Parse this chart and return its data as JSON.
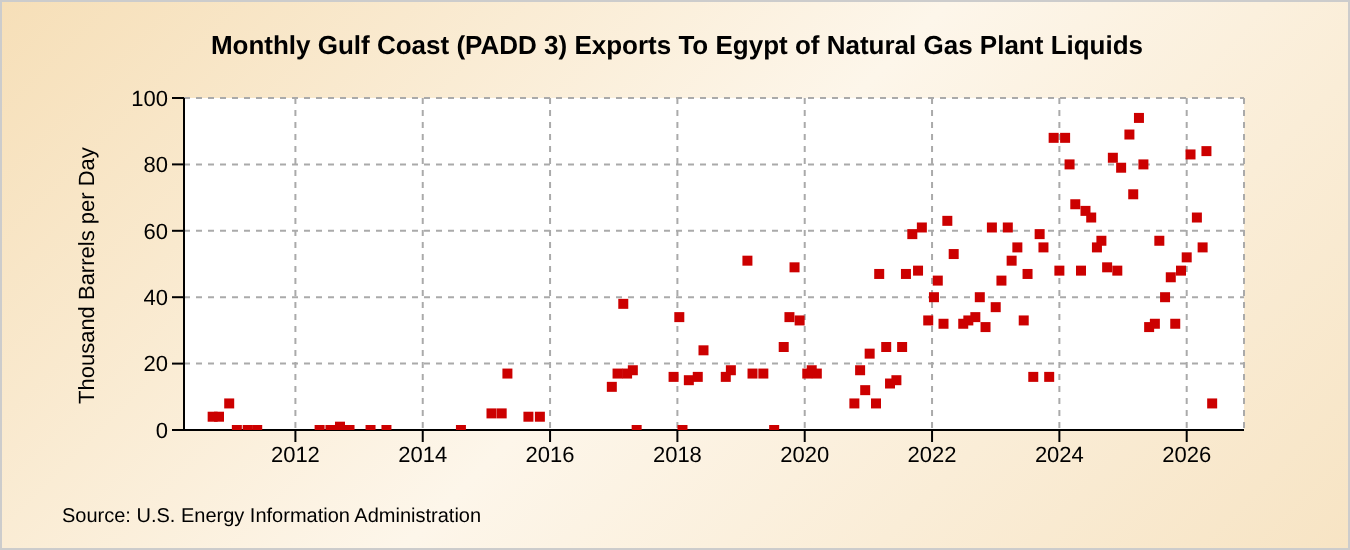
{
  "chart_data": {
    "type": "scatter",
    "title": "Monthly Gulf Coast (PADD 3) Exports To Egypt of Natural Gas Plant Liquids",
    "ylabel": "Thousand Barrels per Day",
    "annotations": [
      "Source: U.S. Energy Information Administration"
    ],
    "x": [
      2010.7,
      2010.8,
      2010.96,
      2011.08,
      2011.25,
      2011.4,
      2012.38,
      2012.55,
      2012.7,
      2012.85,
      2013.18,
      2013.43,
      2014.6,
      2015.08,
      2015.24,
      2015.33,
      2015.66,
      2015.84,
      2016.97,
      2017.06,
      2017.15,
      2017.21,
      2017.3,
      2017.36,
      2017.94,
      2018.03,
      2018.08,
      2018.18,
      2018.32,
      2018.41,
      2018.76,
      2018.84,
      2019.1,
      2019.18,
      2019.35,
      2019.52,
      2019.67,
      2019.76,
      2019.84,
      2019.92,
      2020.04,
      2020.11,
      2020.19,
      2020.78,
      2020.87,
      2020.95,
      2021.02,
      2021.12,
      2021.17,
      2021.28,
      2021.34,
      2021.44,
      2021.53,
      2021.59,
      2021.69,
      2021.78,
      2021.84,
      2021.94,
      2022.03,
      2022.09,
      2022.18,
      2022.24,
      2022.34,
      2022.49,
      2022.57,
      2022.68,
      2022.75,
      2022.84,
      2022.94,
      2023.0,
      2023.09,
      2023.19,
      2023.25,
      2023.34,
      2023.44,
      2023.5,
      2023.59,
      2023.69,
      2023.75,
      2023.84,
      2023.91,
      2024.0,
      2024.09,
      2024.16,
      2024.25,
      2024.34,
      2024.41,
      2024.5,
      2024.59,
      2024.66,
      2024.75,
      2024.84,
      2024.91,
      2024.97,
      2025.1,
      2025.16,
      2025.25,
      2025.32,
      2025.41,
      2025.5,
      2025.57,
      2025.66,
      2025.75,
      2025.82,
      2025.91,
      2026.0,
      2026.06,
      2026.16,
      2026.25,
      2026.31,
      2026.4
    ],
    "series": [
      {
        "color": "#cc0000",
        "values": [
          4,
          4,
          8,
          0,
          0,
          0,
          0,
          0,
          1,
          0,
          0,
          0,
          0,
          5,
          5,
          17,
          4,
          4,
          13,
          17,
          38,
          17,
          18,
          0,
          16,
          34,
          0,
          15,
          16,
          24,
          16,
          18,
          51,
          17,
          17,
          0,
          25,
          34,
          49,
          33,
          17,
          18,
          17,
          8,
          18,
          12,
          23,
          8,
          47,
          25,
          14,
          15,
          25,
          47,
          59,
          48,
          61,
          33,
          40,
          45,
          32,
          63,
          53,
          32,
          33,
          34,
          40,
          31,
          61,
          37,
          45,
          61,
          51,
          55,
          33,
          47,
          16,
          59,
          55,
          16,
          88,
          48,
          88,
          80,
          68,
          48,
          66,
          64,
          55,
          57,
          49,
          82,
          48,
          79,
          89,
          71,
          94,
          80,
          31,
          32,
          57,
          40,
          46,
          32,
          48,
          52,
          83,
          64,
          55,
          84,
          8
        ]
      }
    ],
    "xlim": [
      2010.25,
      2026.9
    ],
    "xticks": [
      2012,
      2014,
      2016,
      2018,
      2020,
      2022,
      2024,
      2026
    ],
    "ylim": [
      0,
      100
    ],
    "yticks": [
      0,
      20,
      40,
      60,
      80,
      100
    ],
    "grid": true,
    "marker": "square"
  }
}
